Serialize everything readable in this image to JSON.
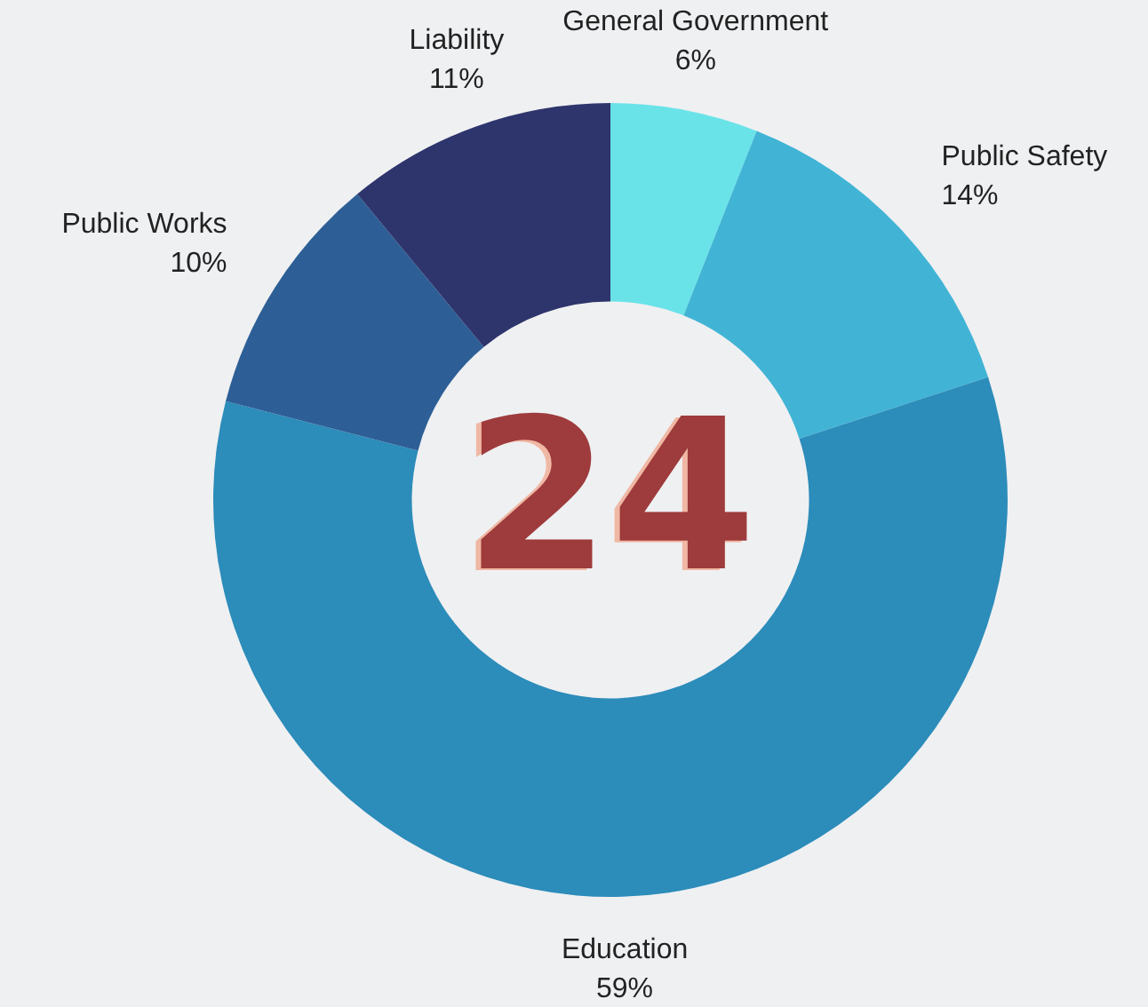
{
  "chart_data": {
    "type": "donut",
    "categories": [
      "General Government",
      "Public Safety",
      "Education",
      "Public Works",
      "Liability"
    ],
    "values": [
      6,
      14,
      59,
      10,
      11
    ],
    "colors": [
      "#69e3e8",
      "#41b4d5",
      "#2c8cba",
      "#2d5f96",
      "#2e346c"
    ],
    "value_labels": [
      "6%",
      "14%",
      "59%",
      "10%",
      "11%"
    ],
    "annotations": [
      "24"
    ],
    "legend": false
  }
}
